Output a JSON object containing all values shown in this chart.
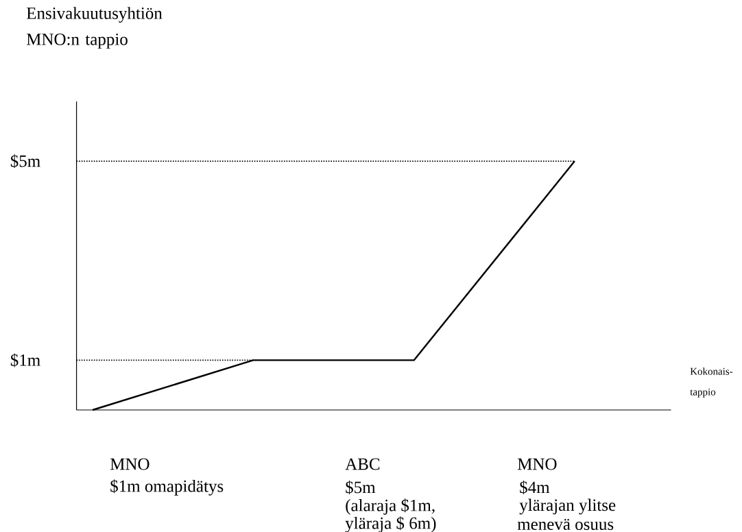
{
  "chart_data": {
    "type": "line",
    "ylabel": "Ensivakuutusyhtiön MNO:n tappio",
    "xlabel": "Kokonais-tappio",
    "ylim": [
      0,
      6.2
    ],
    "yticks": [
      {
        "value": 1,
        "label": "$1m"
      },
      {
        "value": 5,
        "label": "$5m"
      }
    ],
    "categories": [
      null,
      null,
      null,
      null
    ],
    "values": [
      0,
      1,
      1,
      5
    ],
    "color": "#000000",
    "marker": "none",
    "line_style": "solid",
    "tick_labels": "y",
    "ref_lines": [
      {
        "axis": "y",
        "value": 1,
        "line_style": "dotted",
        "color": "#000000"
      },
      {
        "axis": "y",
        "value": 5,
        "line_style": "dotted",
        "color": "#000000"
      }
    ],
    "annotations": [
      "MNO",
      "$1m omapidätys",
      "ABC",
      "$5m",
      "(alaraja $1m,",
      "yläraja $ 6m)",
      "MNO",
      "$4m",
      "ylärajan ylitse",
      "menevä osuus"
    ]
  }
}
